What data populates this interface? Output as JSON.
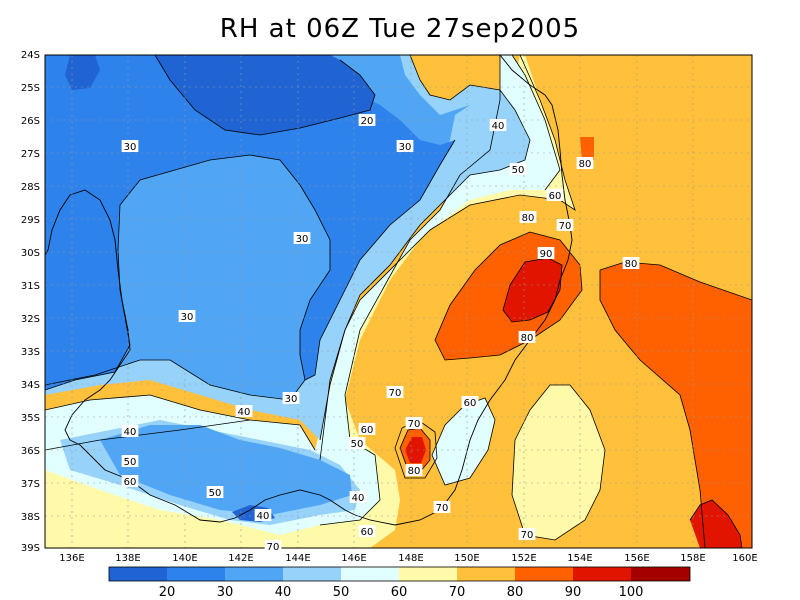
{
  "title": "RH at 06Z Tue 27sep2005",
  "lat_labels": [
    "24S",
    "25S",
    "26S",
    "27S",
    "28S",
    "29S",
    "30S",
    "31S",
    "32S",
    "33S",
    "34S",
    "35S",
    "36S",
    "37S",
    "38S",
    "39S"
  ],
  "lon_labels": [
    "136E",
    "138E",
    "140E",
    "142E",
    "144E",
    "146E",
    "148E",
    "150E",
    "152E",
    "154E",
    "156E",
    "158E",
    "160E"
  ],
  "colorbar": {
    "labels": [
      "20",
      "30",
      "40",
      "50",
      "60",
      "70",
      "80",
      "90",
      "100"
    ],
    "colors": [
      "#1f64d2",
      "#2d82eb",
      "#50a5f5",
      "#96d2fa",
      "#e1ffff",
      "#fffaaa",
      "#ffc03c",
      "#ff6000",
      "#e11400",
      "#a50000"
    ]
  },
  "contour_labels": [
    {
      "text": "20"
    },
    {
      "text": "30"
    },
    {
      "text": "30"
    },
    {
      "text": "30"
    },
    {
      "text": "30"
    },
    {
      "text": "30"
    },
    {
      "text": "40"
    },
    {
      "text": "40"
    },
    {
      "text": "40"
    },
    {
      "text": "40"
    },
    {
      "text": "40"
    },
    {
      "text": "50"
    },
    {
      "text": "50"
    },
    {
      "text": "50"
    },
    {
      "text": "50"
    },
    {
      "text": "60"
    },
    {
      "text": "60"
    },
    {
      "text": "60"
    },
    {
      "text": "60"
    },
    {
      "text": "60"
    },
    {
      "text": "70"
    },
    {
      "text": "70"
    },
    {
      "text": "70"
    },
    {
      "text": "70"
    },
    {
      "text": "70"
    },
    {
      "text": "70"
    },
    {
      "text": "80"
    },
    {
      "text": "80"
    },
    {
      "text": "80"
    },
    {
      "text": "80"
    },
    {
      "text": "80"
    },
    {
      "text": "90"
    }
  ]
}
